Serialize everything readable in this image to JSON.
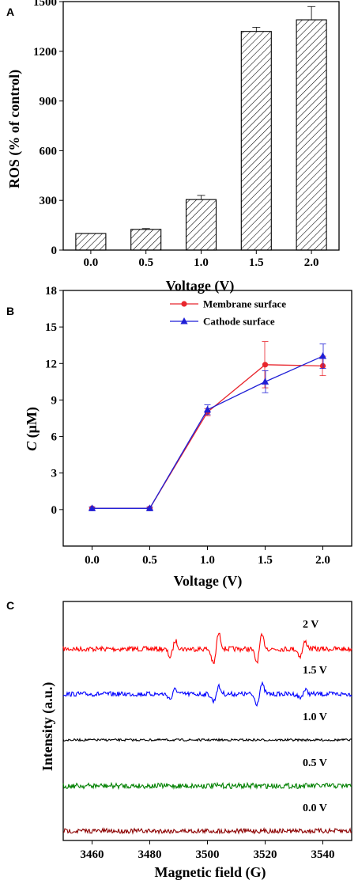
{
  "chart_data": [
    {
      "panel": "A",
      "type": "bar",
      "categories": [
        "0.0",
        "0.5",
        "1.0",
        "1.5",
        "2.0"
      ],
      "values": [
        100,
        125,
        305,
        1320,
        1390
      ],
      "errors": [
        0,
        5,
        25,
        25,
        80
      ],
      "xlabel": "Voltage (V)",
      "ylabel": "ROS (% of control)",
      "ylim": [
        0,
        1500
      ],
      "yticks": [
        "0",
        "300",
        "600",
        "900",
        "1200",
        "1500"
      ],
      "fill_pattern": "diagonal-hatch",
      "grid": false
    },
    {
      "panel": "B",
      "type": "line",
      "x": [
        0.0,
        0.5,
        1.0,
        1.5,
        2.0
      ],
      "xticks": [
        "0.0",
        "0.5",
        "1.0",
        "1.5",
        "2.0"
      ],
      "series": [
        {
          "name": "Membrane surface",
          "values": [
            0.1,
            0.1,
            8.0,
            11.9,
            11.8
          ],
          "errors": [
            0.1,
            0.1,
            0.3,
            1.9,
            0.8
          ],
          "color": "#e8262d",
          "marker": "circle"
        },
        {
          "name": "Cathode surface",
          "values": [
            0.1,
            0.1,
            8.2,
            10.5,
            12.6
          ],
          "errors": [
            0.1,
            0.1,
            0.4,
            0.9,
            1.0
          ],
          "color": "#1f1fd6",
          "marker": "triangle"
        }
      ],
      "xlabel": "Voltage (V)",
      "ylabel": "C (μM)",
      "ylabel_parts": {
        "var": "C",
        "unit": " (μM)"
      },
      "ylim": [
        -3,
        18
      ],
      "yticks": [
        "0",
        "3",
        "6",
        "9",
        "12",
        "15",
        "18"
      ],
      "xlim": [
        -0.25,
        2.25
      ],
      "legend_position": "top-center",
      "grid": false
    },
    {
      "panel": "C",
      "type": "line",
      "xlabel": "Magnetic field (G)",
      "ylabel": "Intensity (a.u.)",
      "xlim": [
        3450,
        3550
      ],
      "xticks": [
        "3460",
        "3480",
        "3500",
        "3520",
        "3540"
      ],
      "peaks_G": [
        3488,
        3503,
        3518,
        3533
      ],
      "series": [
        {
          "name": "2 V",
          "color": "#ff0000",
          "peak_amplitude": [
            1.0,
            1.9,
            1.6,
            0.9
          ]
        },
        {
          "name": "1.5 V",
          "color": "#0000ff",
          "peak_amplitude": [
            0.6,
            0.9,
            1.2,
            0.5
          ]
        },
        {
          "name": "1.0 V",
          "color": "#000000",
          "peak_amplitude": [
            0,
            0,
            0,
            0
          ]
        },
        {
          "name": "0.5 V",
          "color": "#008000",
          "peak_amplitude": [
            0,
            0,
            0,
            0
          ]
        },
        {
          "name": "0.0 V",
          "color": "#8b0000",
          "peak_amplitude": [
            0,
            0,
            0,
            0
          ]
        }
      ],
      "yticks": [],
      "grid": false
    }
  ]
}
